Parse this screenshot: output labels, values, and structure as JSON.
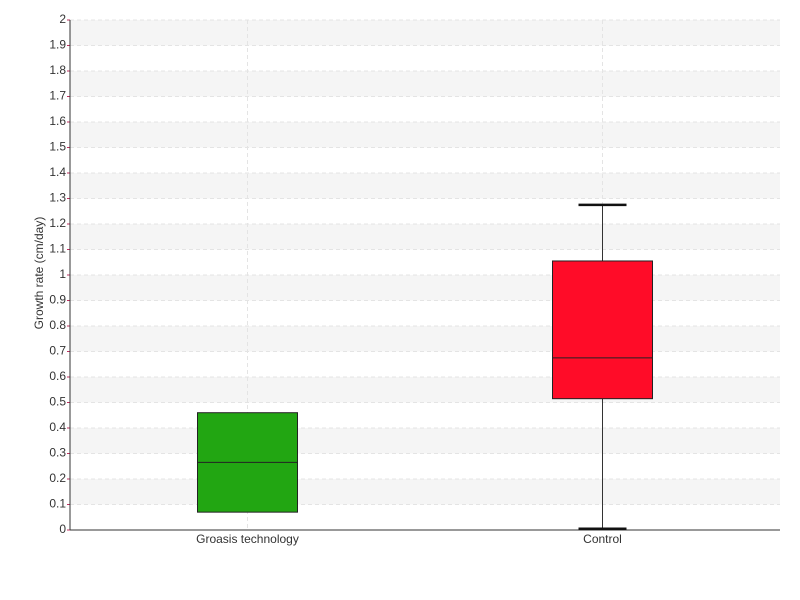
{
  "chart_data": {
    "type": "box",
    "y_label": "Growth rate (cm/day)",
    "categories": [
      "Groasis technology",
      "Control"
    ],
    "boxes": [
      {
        "min": null,
        "q1": 0.07,
        "median": 0.265,
        "q3": 0.46,
        "max": null,
        "color": "#22a612"
      },
      {
        "min": 0.005,
        "q1": 0.515,
        "median": 0.675,
        "q3": 1.055,
        "max": 1.275,
        "color": "#ff0c28"
      }
    ],
    "ylim": [
      0,
      2
    ],
    "yticks": [
      0,
      0.1,
      0.2,
      0.3,
      0.4,
      0.5,
      0.6,
      0.7,
      0.8,
      0.9,
      1,
      1.1,
      1.2,
      1.3,
      1.4,
      1.5,
      1.6,
      1.7,
      1.8,
      1.9,
      2
    ],
    "grid": true
  }
}
